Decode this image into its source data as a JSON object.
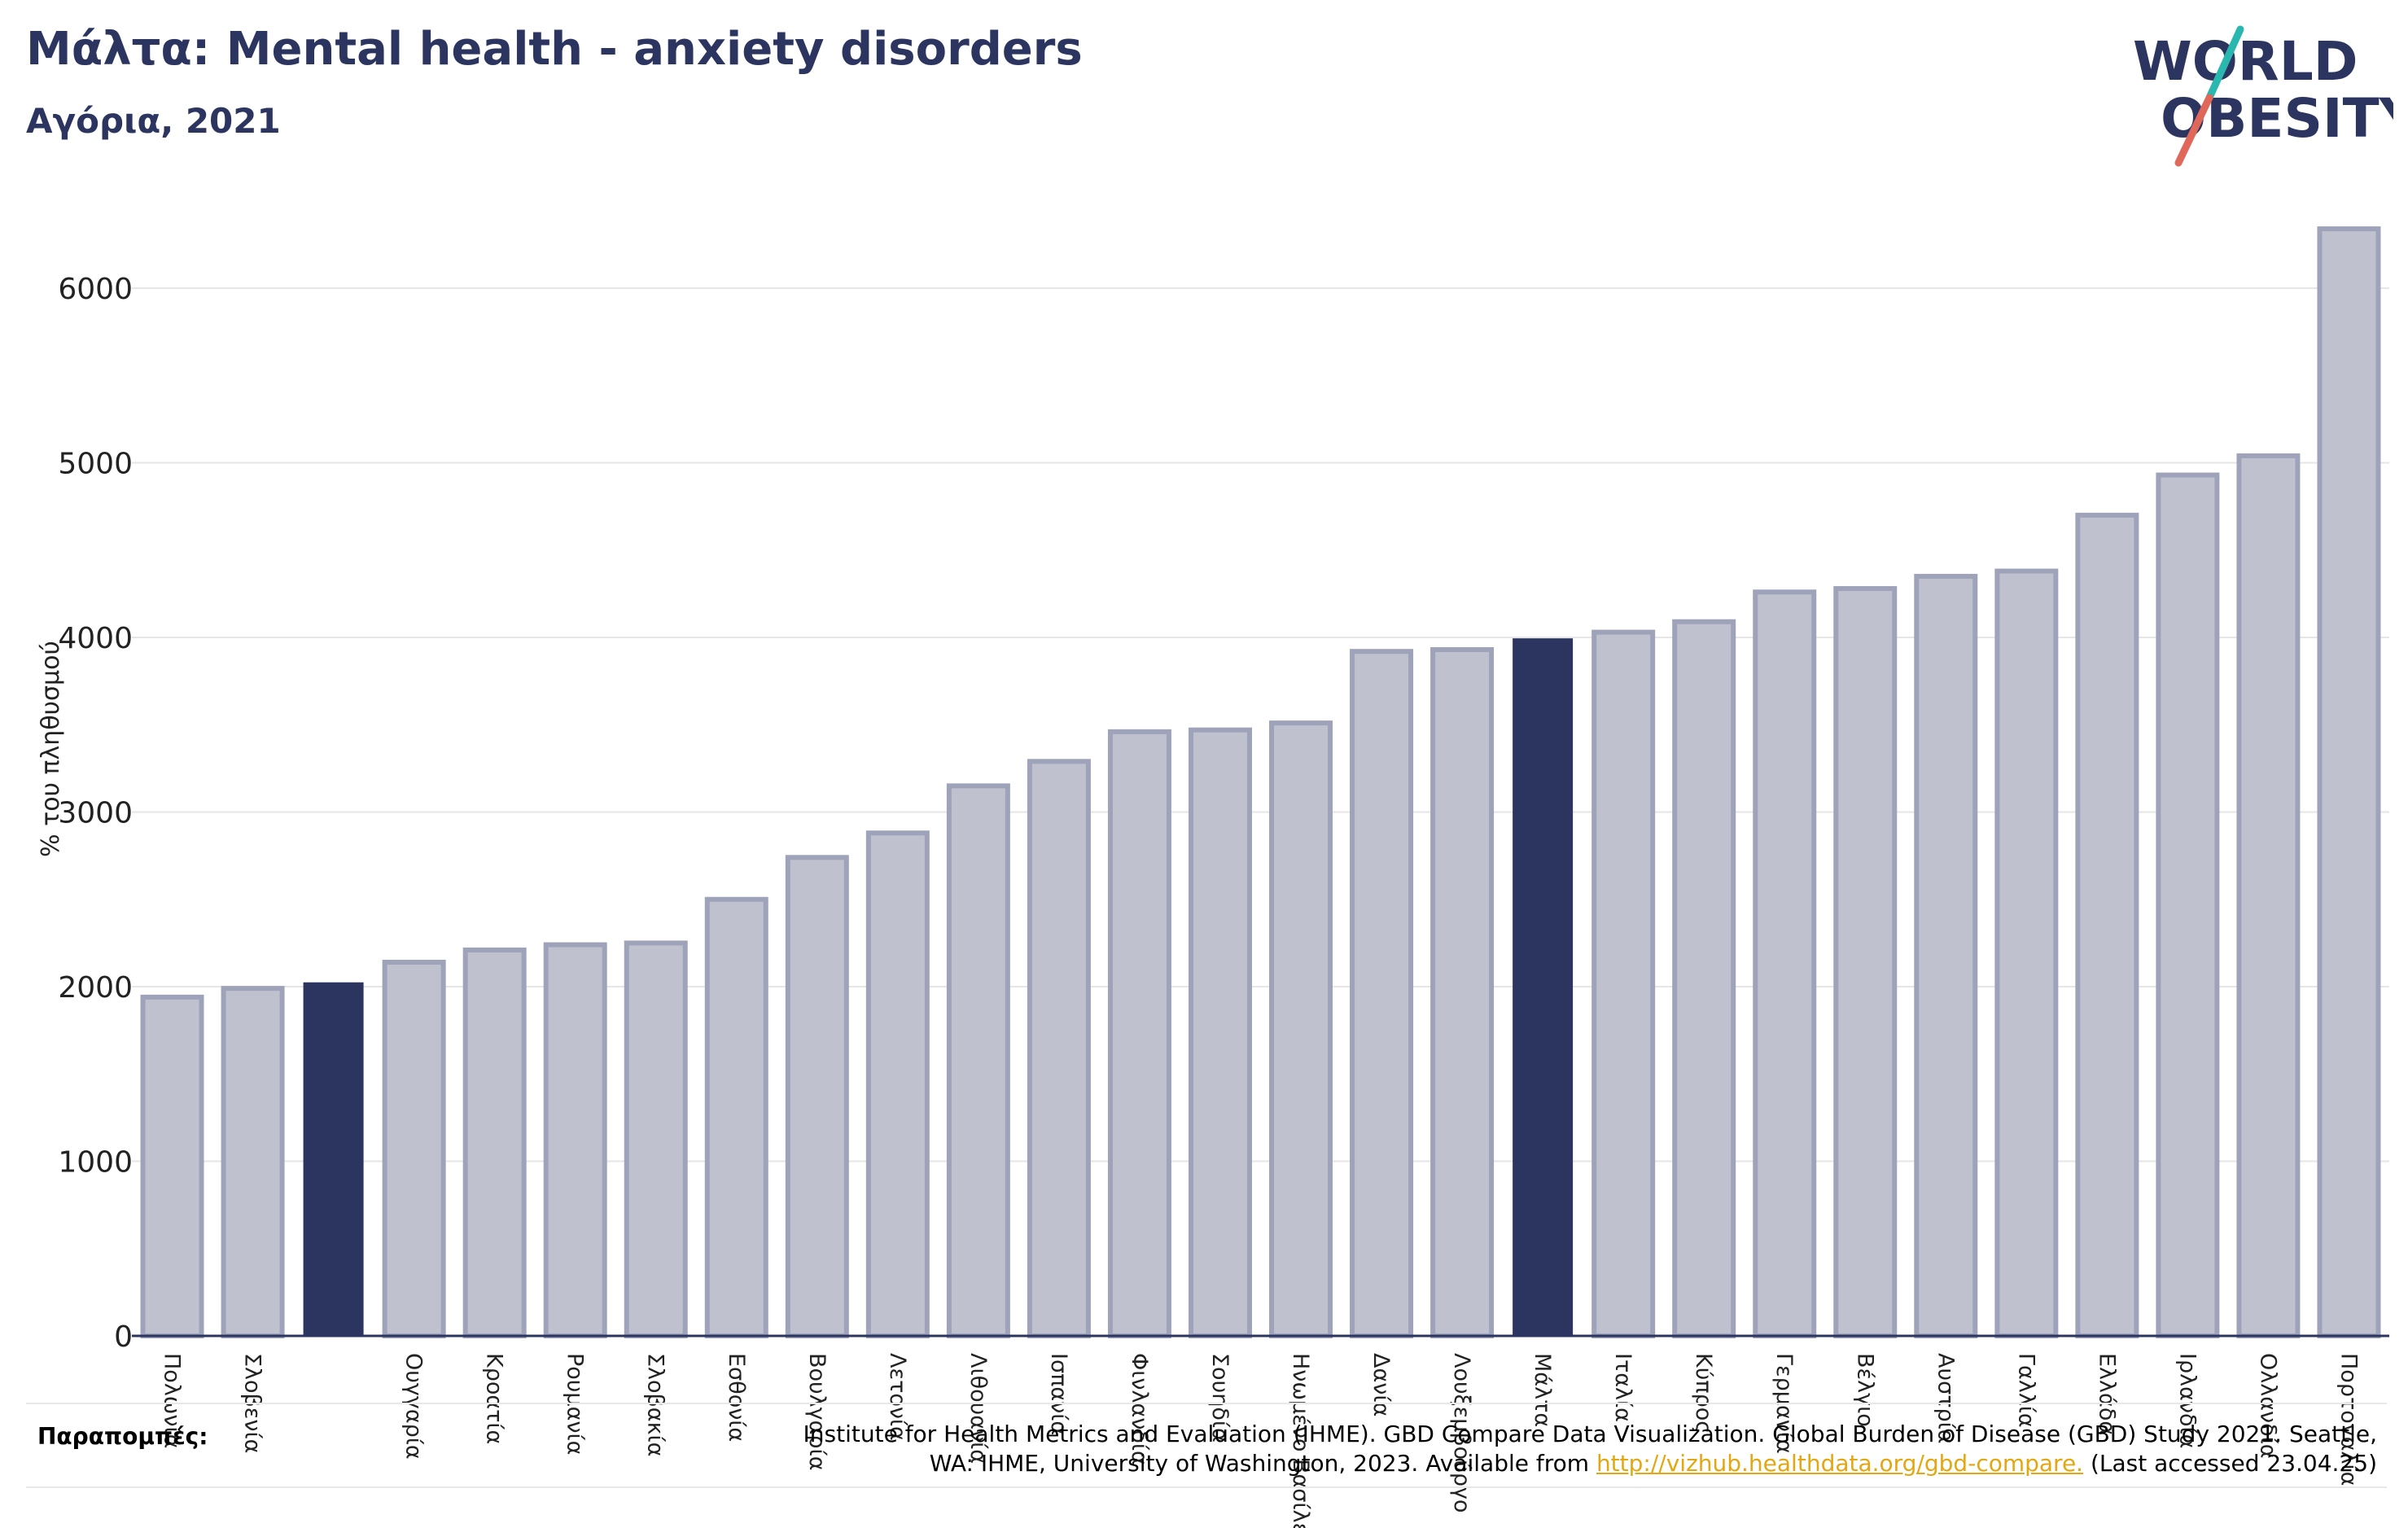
{
  "header": {
    "title": "Μάλτα: Mental health - anxiety disorders",
    "subtitle": "Αγόρια, 2021"
  },
  "logo": {
    "line1": "WORLD",
    "line2": "OBESITY"
  },
  "colors": {
    "bar": "#bfc1cf",
    "bar_stroke": "#9fa3ba",
    "highlight": "#2c3560",
    "title": "#2c3560",
    "grid": "#e6e6e6",
    "link": "#e3a712",
    "logo_teal": "#2ab7b0",
    "logo_red": "#e0685a"
  },
  "chart_data": {
    "type": "bar",
    "ylabel": "% του πληθυσμού",
    "xlabel": "",
    "ylim": [
      0,
      6500
    ],
    "yticks": [
      0,
      1000,
      2000,
      3000,
      4000,
      5000,
      6000
    ],
    "grid": true,
    "categories": [
      "Πολωνία",
      "Σλοβενία",
      "",
      "Ουγγαρία",
      "Κροατία",
      "Ρουμανία",
      "Σλοβακία",
      "Εσθονία",
      "Βουλγαρία",
      "Λετονία",
      "Λιθουανία",
      "Ισπανία",
      "Φινλανδία",
      "Σουηδία",
      "Ηνωμένο Βασίλειο",
      "Δανία",
      "Λουξεμβούργο",
      "Μάλτα",
      "Ιταλία",
      "Κύπρος",
      "Γερμανία",
      "Βέλγιο",
      "Αυστρία",
      "Γαλλία",
      "Ελλάδα",
      "Ιρλανδία",
      "Ολλανδία",
      "Πορτογαλία"
    ],
    "values": [
      1940,
      1990,
      2020,
      2140,
      2210,
      2240,
      2250,
      2500,
      2740,
      2880,
      3150,
      3290,
      3460,
      3470,
      3510,
      3920,
      3930,
      3990,
      4030,
      4090,
      4260,
      4280,
      4350,
      4380,
      4700,
      4930,
      5040,
      6340
    ],
    "highlighted": [
      2,
      17
    ]
  },
  "footer": {
    "label": "Παραπομπές:",
    "line1": "Institute for Health Metrics and Evaluation (IHME). GBD Compare Data Visualization. Global Burden of Disease (GBD) Study 2021. Seattle,",
    "line2_pre": "WA: IHME, University of Washington, 2023. Available from ",
    "link": "http://vizhub.healthdata.org/gbd-compare.",
    "line2_post": " (Last accessed 23.04.25)"
  }
}
